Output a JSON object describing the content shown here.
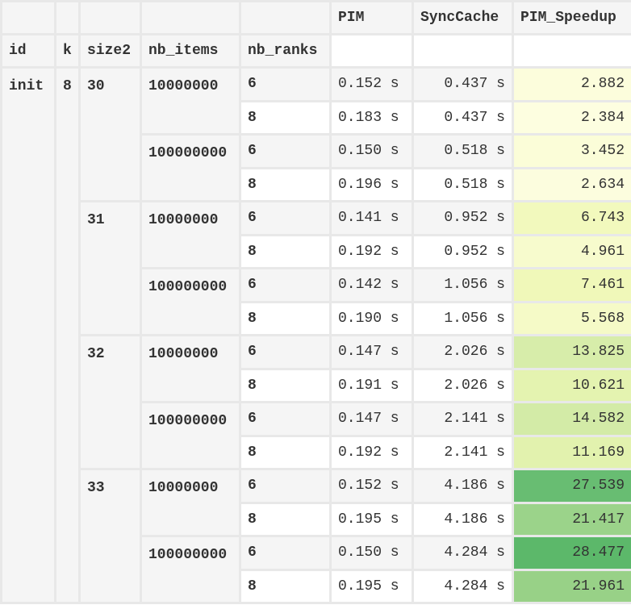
{
  "columns": {
    "id": "id",
    "k": "k",
    "size2": "size2",
    "nb_items": "nb_items",
    "nb_ranks": "nb_ranks",
    "pim": "PIM",
    "synccache": "SyncCache",
    "speedup": "PIM_Speedup"
  },
  "index": {
    "id": "init",
    "k": "8",
    "size2": [
      "30",
      "31",
      "32",
      "33"
    ],
    "nb_items": [
      "10000000",
      "100000000"
    ]
  },
  "rows": [
    {
      "nb_ranks": "6",
      "pim": "0.152 s",
      "sync": "0.437 s",
      "speedup": "2.882",
      "color": "#fcfddc"
    },
    {
      "nb_ranks": "8",
      "pim": "0.183 s",
      "sync": "0.437 s",
      "speedup": "2.384",
      "color": "#fdfee0"
    },
    {
      "nb_ranks": "6",
      "pim": "0.150 s",
      "sync": "0.518 s",
      "speedup": "3.452",
      "color": "#fbfdd8"
    },
    {
      "nb_ranks": "8",
      "pim": "0.196 s",
      "sync": "0.518 s",
      "speedup": "2.634",
      "color": "#fcfdde"
    },
    {
      "nb_ranks": "6",
      "pim": "0.141 s",
      "sync": "0.952 s",
      "speedup": "6.743",
      "color": "#f2f9bd"
    },
    {
      "nb_ranks": "8",
      "pim": "0.192 s",
      "sync": "0.952 s",
      "speedup": "4.961",
      "color": "#f7fbcd"
    },
    {
      "nb_ranks": "6",
      "pim": "0.142 s",
      "sync": "1.056 s",
      "speedup": "7.461",
      "color": "#f0f8b9"
    },
    {
      "nb_ranks": "8",
      "pim": "0.190 s",
      "sync": "1.056 s",
      "speedup": "5.568",
      "color": "#f5fac7"
    },
    {
      "nb_ranks": "6",
      "pim": "0.147 s",
      "sync": "2.026 s",
      "speedup": "13.825",
      "color": "#d7edaa"
    },
    {
      "nb_ranks": "8",
      "pim": "0.191 s",
      "sync": "2.026 s",
      "speedup": "10.621",
      "color": "#e4f3b0"
    },
    {
      "nb_ranks": "6",
      "pim": "0.147 s",
      "sync": "2.141 s",
      "speedup": "14.582",
      "color": "#d3eba7"
    },
    {
      "nb_ranks": "8",
      "pim": "0.192 s",
      "sync": "2.141 s",
      "speedup": "11.169",
      "color": "#e2f2ae"
    },
    {
      "nb_ranks": "6",
      "pim": "0.152 s",
      "sync": "4.186 s",
      "speedup": "27.539",
      "color": "#68bd72"
    },
    {
      "nb_ranks": "8",
      "pim": "0.195 s",
      "sync": "4.186 s",
      "speedup": "21.417",
      "color": "#9bd38a"
    },
    {
      "nb_ranks": "6",
      "pim": "0.150 s",
      "sync": "4.284 s",
      "speedup": "28.477",
      "color": "#5cb86a"
    },
    {
      "nb_ranks": "8",
      "pim": "0.195 s",
      "sync": "4.284 s",
      "speedup": "21.961",
      "color": "#98d187"
    }
  ]
}
